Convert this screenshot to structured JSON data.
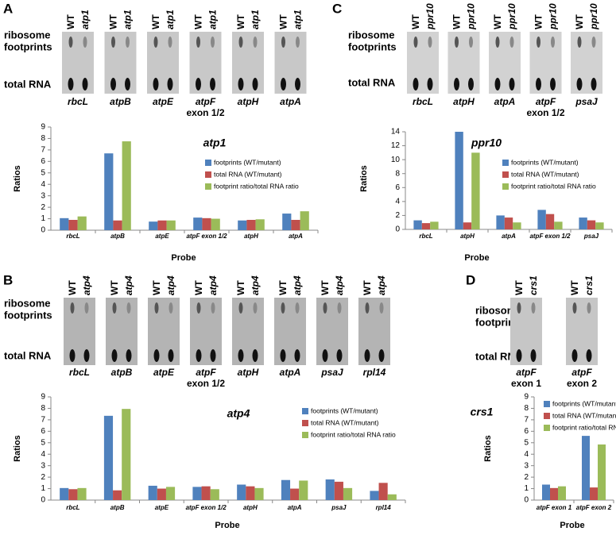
{
  "chart_data": [
    {
      "type": "bar",
      "panel": "A",
      "title": "atp1",
      "y_label": "Ratios",
      "x_label": "Probe",
      "categories": [
        "rbcL",
        "atpB",
        "atpE",
        "atpF exon 1/2",
        "atpH",
        "atpA"
      ],
      "series": [
        {
          "name": "footprints (WT/mutant)",
          "color": "#4f81bd",
          "values": [
            1.05,
            6.7,
            0.75,
            1.1,
            0.85,
            1.45
          ]
        },
        {
          "name": "total RNA (WT/mutant)",
          "color": "#c0504d",
          "values": [
            0.9,
            0.85,
            0.85,
            1.05,
            0.9,
            0.9
          ]
        },
        {
          "name": "footprint ratio/total RNA ratio",
          "color": "#9bbb59",
          "values": [
            1.2,
            7.75,
            0.85,
            1.0,
            0.95,
            1.65
          ]
        }
      ],
      "ylim": [
        0,
        9
      ],
      "yticks": [
        0,
        1,
        2,
        3,
        4,
        5,
        6,
        7,
        8,
        9
      ]
    },
    {
      "type": "bar",
      "panel": "B",
      "title": "atp4",
      "y_label": "Ratios",
      "x_label": "Probe",
      "categories": [
        "rbcL",
        "atpB",
        "atpE",
        "atpF exon 1/2",
        "atpH",
        "atpA",
        "psaJ",
        "rpl14"
      ],
      "series": [
        {
          "name": "footprints (WT/mutant)",
          "color": "#4f81bd",
          "values": [
            1.05,
            7.35,
            1.25,
            1.15,
            1.35,
            1.75,
            1.8,
            0.8
          ]
        },
        {
          "name": "total RNA (WT/mutant)",
          "color": "#c0504d",
          "values": [
            0.95,
            0.85,
            1.0,
            1.2,
            1.2,
            1.0,
            1.6,
            1.5
          ]
        },
        {
          "name": "footprint ratio/total RNA ratio",
          "color": "#9bbb59",
          "values": [
            1.05,
            7.95,
            1.15,
            0.95,
            1.05,
            1.7,
            1.05,
            0.5
          ]
        }
      ],
      "ylim": [
        0,
        9
      ],
      "yticks": [
        0,
        1,
        2,
        3,
        4,
        5,
        6,
        7,
        8,
        9
      ]
    },
    {
      "type": "bar",
      "panel": "C",
      "title": "ppr10",
      "y_label": "Ratios",
      "x_label": "Probe",
      "categories": [
        "rbcL",
        "atpH",
        "atpA",
        "atpF exon 1/2",
        "psaJ"
      ],
      "series": [
        {
          "name": "footprints (WT/mutant)",
          "color": "#4f81bd",
          "values": [
            1.3,
            14.0,
            2.0,
            2.8,
            1.7
          ]
        },
        {
          "name": "total RNA (WT/mutant)",
          "color": "#c0504d",
          "values": [
            0.9,
            1.0,
            1.7,
            2.2,
            1.3
          ]
        },
        {
          "name": "footprint ratio/total RNA ratio",
          "color": "#9bbb59",
          "values": [
            1.1,
            11.0,
            1.0,
            1.1,
            1.0
          ]
        }
      ],
      "ylim": [
        0,
        14
      ],
      "yticks": [
        0,
        2,
        4,
        6,
        8,
        10,
        12,
        14
      ]
    },
    {
      "type": "bar",
      "panel": "D",
      "title": "crs1",
      "y_label": "Ratios",
      "x_label": "Probe",
      "categories": [
        "atpF exon 1",
        "atpF exon 2"
      ],
      "series": [
        {
          "name": "footprints (WT/mutant)",
          "color": "#4f81bd",
          "values": [
            1.35,
            5.6
          ]
        },
        {
          "name": "total RNA (WT/mutant)",
          "color": "#c0504d",
          "values": [
            1.05,
            1.1
          ]
        },
        {
          "name": "footprint ratio/total RNA ratio",
          "color": "#9bbb59",
          "values": [
            1.2,
            4.85
          ]
        }
      ],
      "ylim": [
        0,
        9
      ],
      "yticks": [
        0,
        1,
        2,
        3,
        4,
        5,
        6,
        7,
        8,
        9
      ]
    }
  ],
  "blots": [
    {
      "wt": "WT",
      "mutant": "atp1",
      "fp_label": [
        "ribosome",
        "footprints"
      ],
      "rna_label": "total RNA",
      "lanes": [
        {
          "gene": "rbcL"
        },
        {
          "gene": "atpB"
        },
        {
          "gene": "atpE"
        },
        {
          "gene": "atpF",
          "note": "exon 1/2"
        },
        {
          "gene": "atpH"
        },
        {
          "gene": "atpA"
        }
      ]
    },
    {
      "wt": "WT",
      "mutant": "atp4",
      "fp_label": [
        "ribosome",
        "footprints"
      ],
      "rna_label": "total RNA",
      "lanes": [
        {
          "gene": "rbcL"
        },
        {
          "gene": "atpB"
        },
        {
          "gene": "atpE"
        },
        {
          "gene": "atpF",
          "note": "exon 1/2"
        },
        {
          "gene": "atpH"
        },
        {
          "gene": "atpA"
        },
        {
          "gene": "psaJ"
        },
        {
          "gene": "rpl14"
        }
      ]
    },
    {
      "wt": "WT",
      "mutant": "ppr10",
      "fp_label": [
        "ribosome",
        "footprints"
      ],
      "rna_label": "total RNA",
      "lanes": [
        {
          "gene": "rbcL"
        },
        {
          "gene": "atpH"
        },
        {
          "gene": "atpA"
        },
        {
          "gene": "atpF",
          "note": "exon 1/2"
        },
        {
          "gene": "psaJ"
        }
      ]
    },
    {
      "wt": "WT",
      "mutant": "crs1",
      "fp_label": [
        "ribosome",
        "footprints"
      ],
      "rna_label": "total RNA",
      "lanes": [
        {
          "gene": "atpF",
          "note": "exon 1"
        },
        {
          "gene": "atpF",
          "note": "exon 2"
        }
      ]
    }
  ]
}
